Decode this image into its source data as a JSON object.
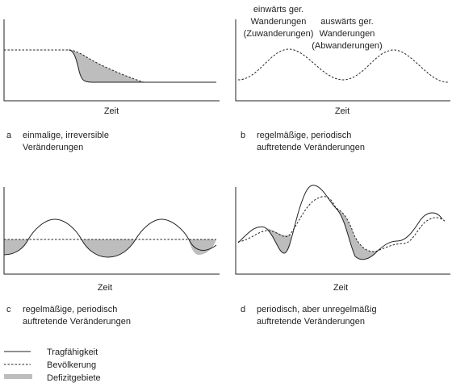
{
  "panels": {
    "a": {
      "letter": "a",
      "axis_label": "Zeit",
      "caption_line1": "einmalige, irreversible",
      "caption_line2": "Veränderungen"
    },
    "b": {
      "letter": "b",
      "axis_label": "Zeit",
      "caption_line1": "regelmäßige, periodisch",
      "caption_line2": "auftretende Veränderungen",
      "annotation_in_1": "einwärts ger.",
      "annotation_in_2": "Wanderungen",
      "annotation_in_3": "(Zuwanderungen)",
      "annotation_out_1": "auswärts ger.",
      "annotation_out_2": "Wanderungen",
      "annotation_out_3": "(Abwanderungen)"
    },
    "c": {
      "letter": "c",
      "axis_label": "Zeit",
      "caption_line1": "regelmäßige, periodisch",
      "caption_line2": "auftretende Veränderungen"
    },
    "d": {
      "letter": "d",
      "axis_label": "Zeit",
      "caption_line1": "periodisch, aber unregelmäßig",
      "caption_line2": "auftretende Veränderungen"
    }
  },
  "legend": {
    "capacity": "Tragfähigkeit",
    "population": "Bevölkerung",
    "deficit": "Defizitgebiete"
  },
  "colors": {
    "line": "#222222",
    "deficit_fill": "#bdbdbd",
    "background": "#ffffff"
  }
}
